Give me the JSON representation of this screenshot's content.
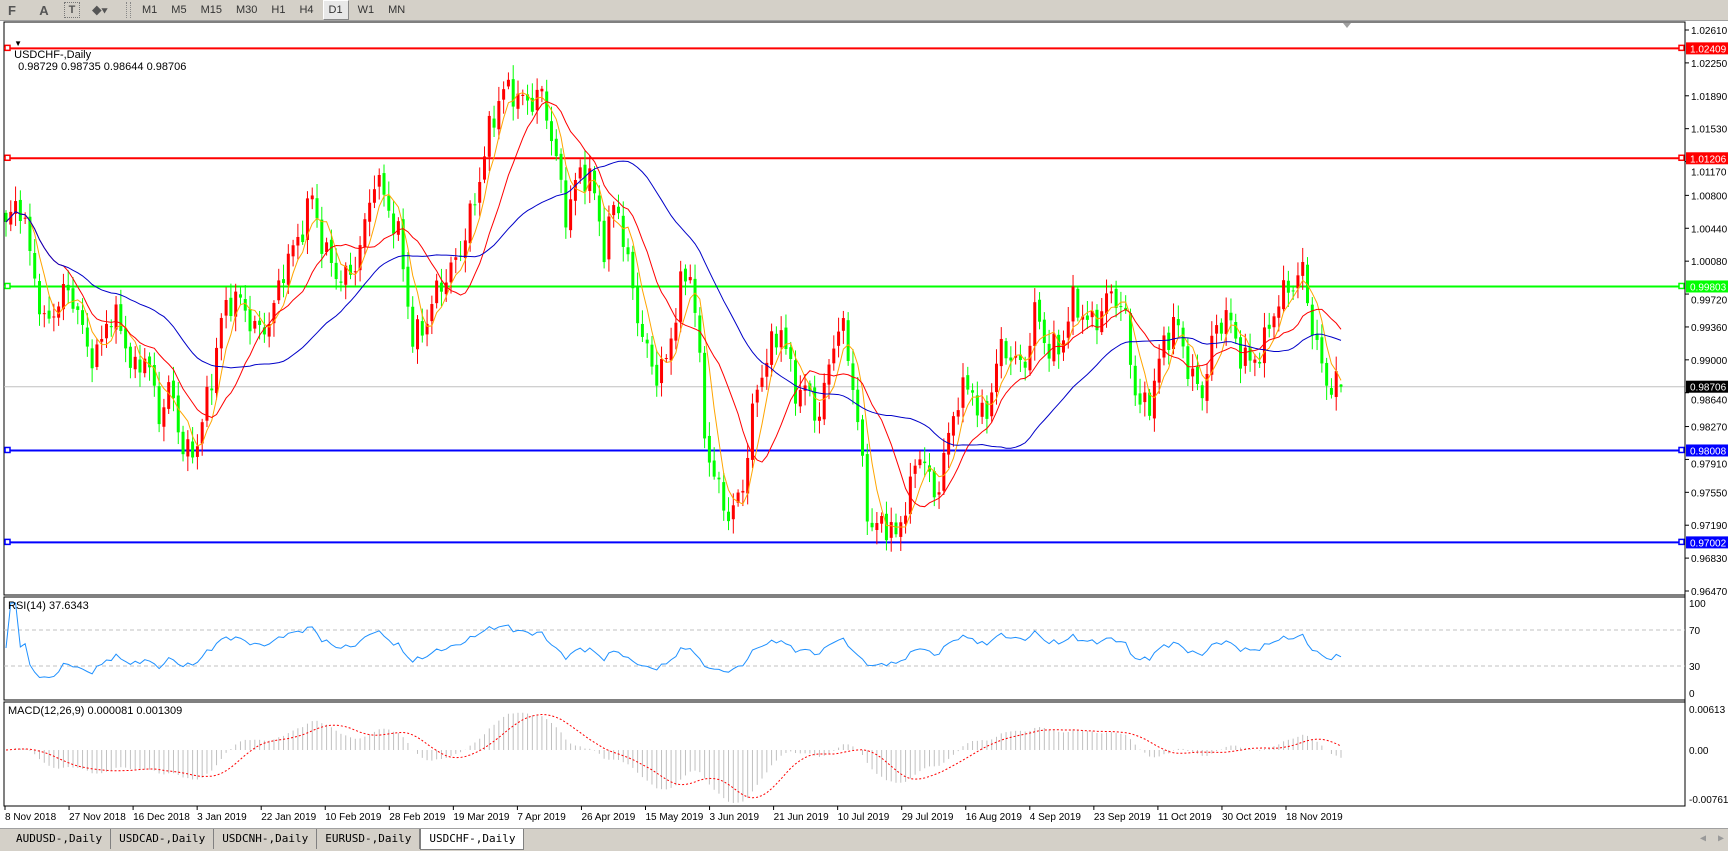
{
  "toolbar": {
    "icons": [
      "grid-icon",
      "text-icon",
      "text-label-icon",
      "arrows-icon"
    ],
    "icon_glyphs": [
      "F",
      "A",
      "T",
      "⬥▾"
    ],
    "timeframes": [
      "M1",
      "M5",
      "M15",
      "M30",
      "H1",
      "H4",
      "D1",
      "W1",
      "MN"
    ],
    "active_timeframe": "D1"
  },
  "chart": {
    "symbol_label": "USDCHF-,Daily",
    "ohlc_text": "0.98729 0.98735 0.98644 0.98706"
  },
  "chart_data": {
    "type": "candlestick",
    "price_axis": {
      "min": 0.9647,
      "max": 1.0261,
      "ticks": [
        "1.02610",
        "1.02250",
        "1.01890",
        "1.01530",
        "1.01170",
        "1.00800",
        "1.00440",
        "1.00080",
        "0.99720",
        "0.99360",
        "0.99000",
        "0.98640",
        "0.98270",
        "0.97910",
        "0.97550",
        "0.97190",
        "0.96830",
        "0.96470"
      ]
    },
    "date_ticks": [
      "8 Nov 2018",
      "27 Nov 2018",
      "16 Dec 2018",
      "3 Jan 2019",
      "22 Jan 2019",
      "10 Feb 2019",
      "28 Feb 2019",
      "19 Mar 2019",
      "7 Apr 2019",
      "26 Apr 2019",
      "15 May 2019",
      "3 Jun 2019",
      "21 Jun 2019",
      "10 Jul 2019",
      "29 Jul 2019",
      "16 Aug 2019",
      "4 Sep 2019",
      "23 Sep 2019",
      "11 Oct 2019",
      "30 Oct 2019",
      "18 Nov 2019"
    ],
    "close_keypoints": [
      1.0045,
      1.0078,
      1.0009,
      0.9936,
      0.996,
      0.998,
      0.9932,
      0.9895,
      0.9948,
      0.994,
      0.9883,
      0.9908,
      0.9839,
      0.9871,
      0.9794,
      0.9806,
      0.9867,
      0.9948,
      0.9972,
      0.9948,
      0.9928,
      0.9952,
      1.0009,
      1.0029,
      1.0082,
      1.0021,
      0.9993,
      0.9989,
      1.0029,
      1.0102,
      1.007,
      1.0029,
      0.992,
      0.994,
      0.998,
      0.9997,
      1.0029,
      1.0082,
      1.015,
      1.0195,
      1.0193,
      1.0179,
      1.0195,
      1.0142,
      1.0057,
      1.0102,
      1.0102,
      1.0021,
      1.0078,
      0.9997,
      0.9928,
      0.9883,
      0.9899,
      0.998,
      0.9997,
      0.981,
      0.9758,
      0.9725,
      0.9766,
      0.9867,
      0.9908,
      0.9936,
      0.9867,
      0.9867,
      0.9835,
      0.992,
      0.9936,
      0.9827,
      0.971,
      0.9725,
      0.9705,
      0.9754,
      0.9806,
      0.9746,
      0.9806,
      0.9867,
      0.9867,
      0.9827,
      0.9908,
      0.9908,
      0.9887,
      0.9956,
      0.9908,
      0.9916,
      0.9968,
      0.994,
      0.9948,
      0.9976,
      0.9948,
      0.9847,
      0.9855,
      0.9916,
      0.9944,
      0.9891,
      0.9859,
      0.9928,
      0.9952,
      0.9908,
      0.9895,
      0.992,
      0.9964,
      0.998,
      0.9997,
      0.9916,
      0.9871,
      0.98706
    ],
    "last_bar": {
      "open": 0.98729,
      "high": 0.98735,
      "low": 0.98644,
      "close": 0.98706
    },
    "colors": {
      "bull": "#ff0000",
      "bear": "#00ff00"
    },
    "moving_averages": [
      {
        "color": "#ffa500"
      },
      {
        "color": "#ff0000"
      },
      {
        "color": "#0000c8"
      }
    ],
    "horizontal_lines": [
      {
        "value": "1.02409",
        "color": "#ff0000"
      },
      {
        "value": "1.01206",
        "color": "#ff0000"
      },
      {
        "value": "0.99803",
        "color": "#00ff00"
      },
      {
        "value": "0.98008",
        "color": "#0000ff"
      },
      {
        "value": "0.97002",
        "color": "#0000ff"
      }
    ],
    "current_price": "0.98706"
  },
  "rsi": {
    "label": "RSI(14) 37.6343",
    "levels": [
      70,
      30
    ],
    "axis": [
      "100",
      "70",
      "30",
      "0"
    ],
    "color": "#1e90ff"
  },
  "macd": {
    "label": "MACD(12,26,9) 0.000081 0.001309",
    "axis": [
      "0.00613",
      "0.00",
      "-0.007612"
    ],
    "max": 0.00613,
    "min": -0.007612,
    "histogram_color": "#c0c0c0",
    "signal_color": "#ff0000"
  },
  "tabs": [
    "AUDUSD-,Daily",
    "USDCAD-,Daily",
    "USDCNH-,Daily",
    "EURUSD-,Daily",
    "USDCHF-,Daily"
  ],
  "active_tab": "USDCHF-,Daily"
}
